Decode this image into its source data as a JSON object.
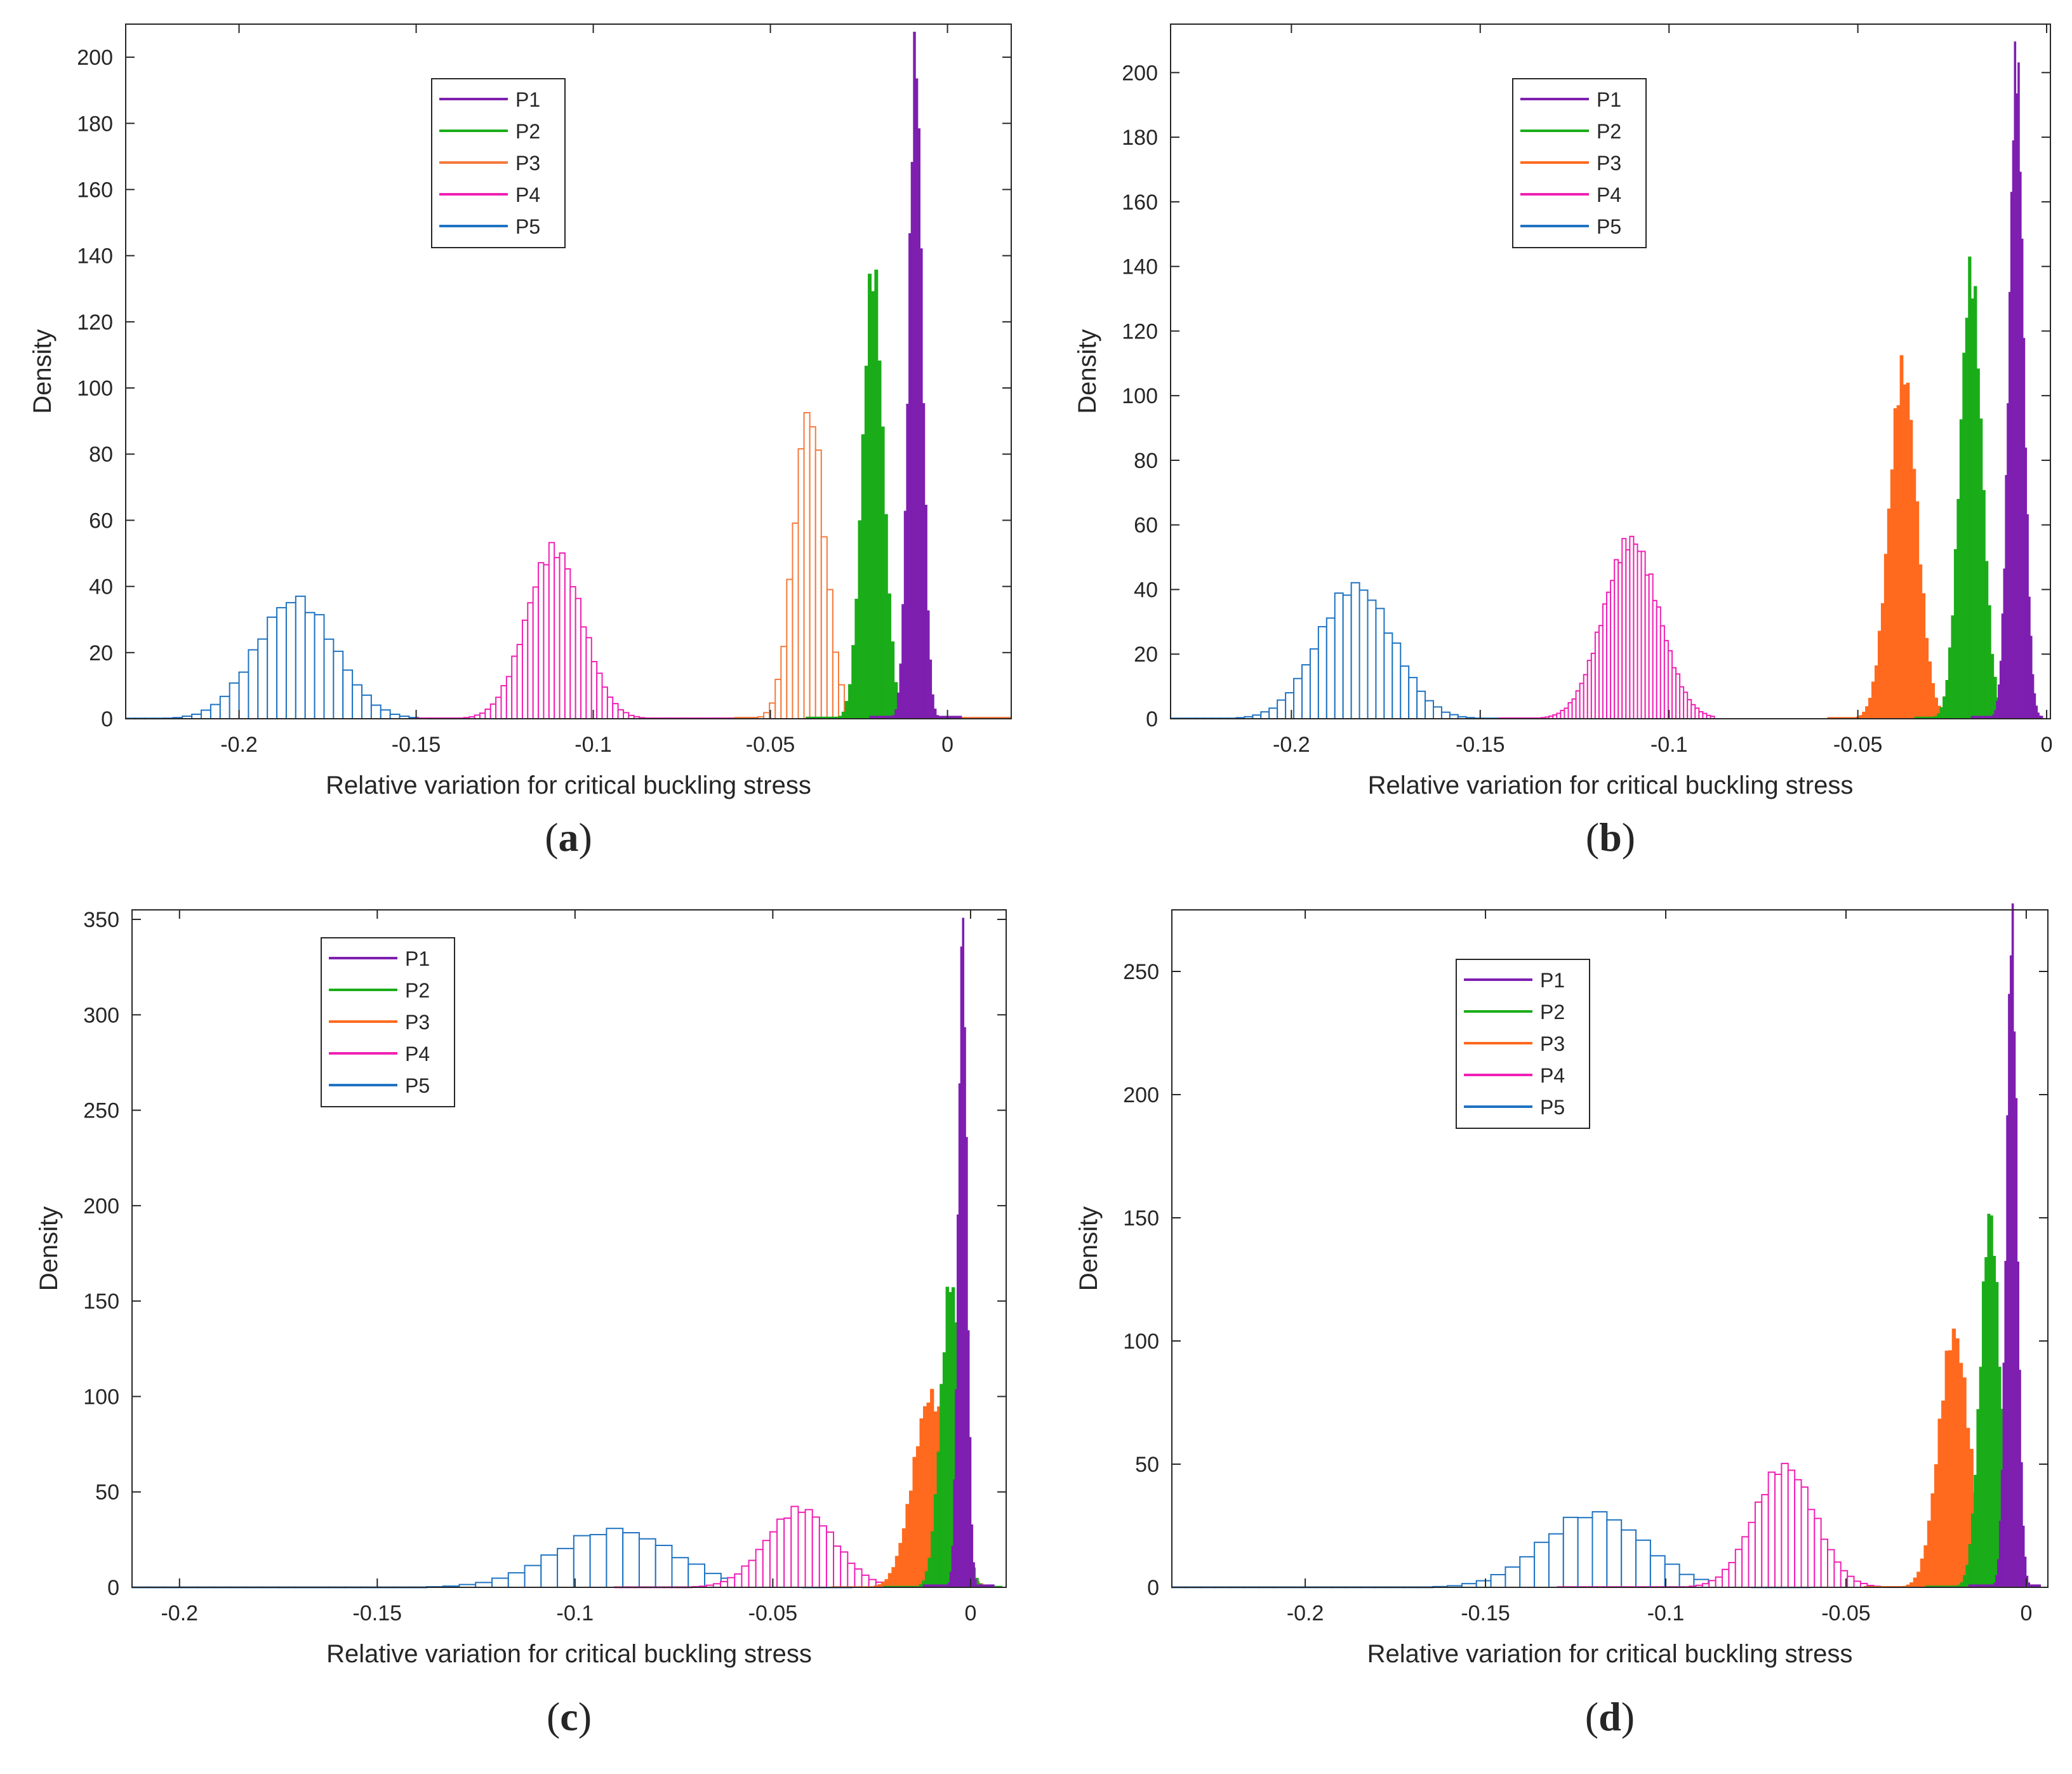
{
  "figure": {
    "panels": [
      "a",
      "b",
      "c",
      "d"
    ]
  },
  "chart_data": [
    {
      "panel": "a",
      "caption_open": "(",
      "caption_label": "a",
      "caption_close": ")",
      "type": "histogram",
      "xlabel": "Relative variation for critical buckling stress",
      "ylabel": "Density",
      "xlim": [
        -0.232,
        0.018
      ],
      "ylim": [
        0,
        210
      ],
      "xticks": [
        -0.2,
        -0.15,
        -0.1,
        -0.05,
        0
      ],
      "xtick_labels": [
        "-0.2",
        "-0.15",
        "-0.1",
        "-0.05",
        "0"
      ],
      "yticks": [
        0,
        20,
        40,
        60,
        80,
        100,
        120,
        140,
        160,
        180,
        200
      ],
      "ytick_labels": [
        "0",
        "20",
        "40",
        "60",
        "80",
        "100",
        "120",
        "140",
        "160",
        "180",
        "200"
      ],
      "legend_position": "top-center",
      "series": [
        {
          "name": "P1",
          "color": "#7e1fb0",
          "mean": -0.009,
          "sd": 0.0019,
          "peak": 202,
          "bins": 40,
          "from": -0.022,
          "to": 0.004,
          "style": "filled"
        },
        {
          "name": "P2",
          "color": "#1aad19",
          "mean": -0.021,
          "sd": 0.0029,
          "peak": 136,
          "bins": 40,
          "from": -0.04,
          "to": -0.003,
          "style": "filled"
        },
        {
          "name": "P3",
          "color": "#f47a3c",
          "mean": -0.039,
          "sd": 0.0043,
          "peak": 93,
          "bins": 48,
          "from": -0.06,
          "to": 0.018,
          "style": "outline-dense"
        },
        {
          "name": "P4",
          "color": "#f020b4",
          "mean": -0.111,
          "sd": 0.0078,
          "peak": 51,
          "bins": 60,
          "from": -0.15,
          "to": -0.06,
          "style": "outline-dense"
        },
        {
          "name": "P5",
          "color": "#1f73c2",
          "mean": -0.184,
          "sd": 0.011,
          "peak": 36,
          "bins": 42,
          "from": -0.232,
          "to": -0.12,
          "style": "outline"
        }
      ]
    },
    {
      "panel": "b",
      "caption_open": "(",
      "caption_label": "b",
      "caption_close": ")",
      "type": "histogram",
      "xlabel": "Relative variation for critical buckling stress",
      "ylabel": "Density",
      "xlim": [
        -0.232,
        0.001
      ],
      "ylim": [
        0,
        215
      ],
      "xticks": [
        -0.2,
        -0.15,
        -0.1,
        -0.05,
        0
      ],
      "xtick_labels": [
        "-0.2",
        "-0.15",
        "-0.1",
        "-0.05",
        "0"
      ],
      "yticks": [
        0,
        20,
        40,
        60,
        80,
        100,
        120,
        140,
        160,
        180,
        200
      ],
      "ytick_labels": [
        "0",
        "20",
        "40",
        "60",
        "80",
        "100",
        "120",
        "140",
        "160",
        "180",
        "200"
      ],
      "legend_position": "top-center",
      "series": [
        {
          "name": "P1",
          "color": "#7e1fb0",
          "mean": -0.008,
          "sd": 0.0019,
          "peak": 204,
          "bins": 40,
          "from": -0.02,
          "to": -0.001,
          "style": "filled"
        },
        {
          "name": "P2",
          "color": "#1aad19",
          "mean": -0.02,
          "sd": 0.0029,
          "peak": 138,
          "bins": 40,
          "from": -0.035,
          "to": -0.005,
          "style": "filled"
        },
        {
          "name": "P3",
          "color": "#ff6a1f",
          "mean": -0.038,
          "sd": 0.0037,
          "peak": 108,
          "bins": 48,
          "from": -0.058,
          "to": -0.018,
          "style": "filled"
        },
        {
          "name": "P4",
          "color": "#f020b4",
          "mean": -0.11,
          "sd": 0.0073,
          "peak": 55,
          "bins": 56,
          "from": -0.145,
          "to": -0.088,
          "style": "outline-dense"
        },
        {
          "name": "P5",
          "color": "#1f73c2",
          "mean": -0.183,
          "sd": 0.0098,
          "peak": 41,
          "bins": 40,
          "from": -0.232,
          "to": -0.145,
          "style": "outline"
        }
      ]
    },
    {
      "panel": "c",
      "caption_open": "(",
      "caption_label": "c",
      "caption_close": ")",
      "type": "histogram",
      "xlabel": "Relative variation for critical buckling stress",
      "ylabel": "Density",
      "xlim": [
        -0.212,
        0.009
      ],
      "ylim": [
        0,
        355
      ],
      "xticks": [
        -0.2,
        -0.15,
        -0.1,
        -0.05,
        0
      ],
      "xtick_labels": [
        "-0.2",
        "-0.15",
        "-0.1",
        "-0.05",
        "0"
      ],
      "yticks": [
        0,
        50,
        100,
        150,
        200,
        250,
        300,
        350
      ],
      "ytick_labels": [
        "0",
        "50",
        "100",
        "150",
        "200",
        "250",
        "300",
        "350"
      ],
      "legend_position": "top-left",
      "series": [
        {
          "name": "P1",
          "color": "#7e1fb0",
          "mean": -0.002,
          "sd": 0.0011,
          "peak": 348,
          "bins": 40,
          "from": -0.012,
          "to": 0.006,
          "style": "filled"
        },
        {
          "name": "P2",
          "color": "#1aad19",
          "mean": -0.005,
          "sd": 0.0025,
          "peak": 160,
          "bins": 40,
          "from": -0.022,
          "to": 0.008,
          "style": "filled"
        },
        {
          "name": "P3",
          "color": "#ff6a1f",
          "mean": -0.01,
          "sd": 0.0045,
          "peak": 100,
          "bins": 44,
          "from": -0.035,
          "to": 0.004,
          "style": "filled"
        },
        {
          "name": "P4",
          "color": "#f020b4",
          "mean": -0.043,
          "sd": 0.0085,
          "peak": 41,
          "bins": 42,
          "from": -0.09,
          "to": -0.015,
          "style": "outline"
        },
        {
          "name": "P5",
          "color": "#1f73c2",
          "mean": -0.09,
          "sd": 0.015,
          "peak": 30,
          "bins": 44,
          "from": -0.212,
          "to": -0.03,
          "style": "outline"
        }
      ]
    },
    {
      "panel": "d",
      "caption_open": "(",
      "caption_label": "d",
      "caption_close": ")",
      "type": "histogram",
      "xlabel": "Relative variation for critical buckling stress",
      "ylabel": "Density",
      "xlim": [
        -0.237,
        0.006
      ],
      "ylim": [
        0,
        275
      ],
      "xticks": [
        -0.2,
        -0.15,
        -0.1,
        -0.05,
        0
      ],
      "xtick_labels": [
        "-0.2",
        "-0.15",
        "-0.1",
        "-0.05",
        "0"
      ],
      "yticks": [
        0,
        50,
        100,
        150,
        200,
        250
      ],
      "ytick_labels": [
        "0",
        "50",
        "100",
        "150",
        "200",
        "250"
      ],
      "legend_position": "top-center",
      "series": [
        {
          "name": "P1",
          "color": "#7e1fb0",
          "mean": -0.004,
          "sd": 0.0015,
          "peak": 269,
          "bins": 40,
          "from": -0.016,
          "to": 0.004,
          "style": "filled"
        },
        {
          "name": "P2",
          "color": "#1aad19",
          "mean": -0.01,
          "sd": 0.0027,
          "peak": 151,
          "bins": 40,
          "from": -0.028,
          "to": 0.002,
          "style": "filled"
        },
        {
          "name": "P3",
          "color": "#ff6a1f",
          "mean": -0.02,
          "sd": 0.0042,
          "peak": 103,
          "bins": 44,
          "from": -0.045,
          "to": -0.002,
          "style": "filled"
        },
        {
          "name": "P4",
          "color": "#f020b4",
          "mean": -0.067,
          "sd": 0.0083,
          "peak": 49,
          "bins": 52,
          "from": -0.13,
          "to": -0.035,
          "style": "outline-dense"
        },
        {
          "name": "P5",
          "color": "#1f73c2",
          "mean": -0.12,
          "sd": 0.014,
          "peak": 30,
          "bins": 44,
          "from": -0.237,
          "to": -0.06,
          "style": "outline"
        }
      ]
    }
  ]
}
